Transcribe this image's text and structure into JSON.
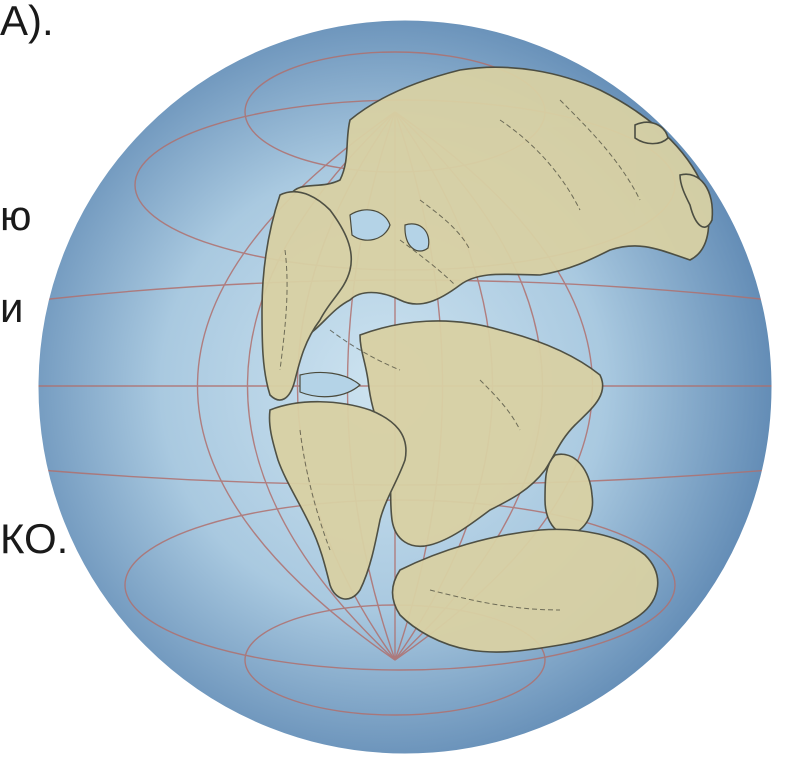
{
  "slide_text": {
    "line1": "A).",
    "line2": "ю",
    "line3": "и",
    "line4": "КО."
  },
  "globe": {
    "ocean_edge_color": "#5d87b2",
    "ocean_center_color": "#cde3f0",
    "land_color": "#d9d1a4",
    "coast_color": "#4a4a3c",
    "graticule_color": "#b0706e"
  }
}
